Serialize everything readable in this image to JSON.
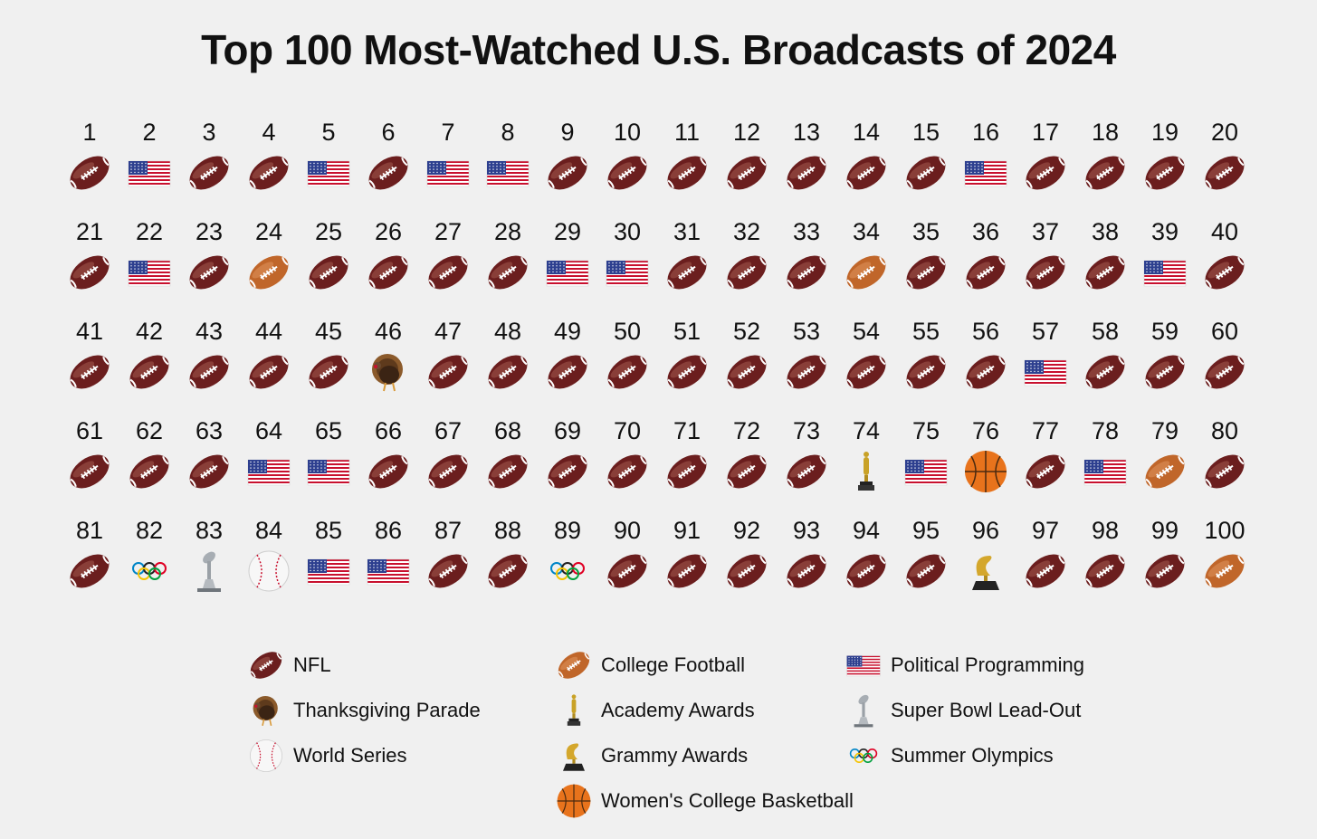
{
  "chart_data": {
    "type": "table",
    "title": "Top 100 Most-Watched U.S. Broadcasts of 2024",
    "ranks": [
      1,
      2,
      3,
      4,
      5,
      6,
      7,
      8,
      9,
      10,
      11,
      12,
      13,
      14,
      15,
      16,
      17,
      18,
      19,
      20,
      21,
      22,
      23,
      24,
      25,
      26,
      27,
      28,
      29,
      30,
      31,
      32,
      33,
      34,
      35,
      36,
      37,
      38,
      39,
      40,
      41,
      42,
      43,
      44,
      45,
      46,
      47,
      48,
      49,
      50,
      51,
      52,
      53,
      54,
      55,
      56,
      57,
      58,
      59,
      60,
      61,
      62,
      63,
      64,
      65,
      66,
      67,
      68,
      69,
      70,
      71,
      72,
      73,
      74,
      75,
      76,
      77,
      78,
      79,
      80,
      81,
      82,
      83,
      84,
      85,
      86,
      87,
      88,
      89,
      90,
      91,
      92,
      93,
      94,
      95,
      96,
      97,
      98,
      99,
      100
    ],
    "categories": [
      "nfl",
      "political",
      "nfl",
      "nfl",
      "political",
      "nfl",
      "political",
      "political",
      "nfl",
      "nfl",
      "nfl",
      "nfl",
      "nfl",
      "nfl",
      "nfl",
      "political",
      "nfl",
      "nfl",
      "nfl",
      "nfl",
      "nfl",
      "political",
      "nfl",
      "college",
      "nfl",
      "nfl",
      "nfl",
      "nfl",
      "political",
      "political",
      "nfl",
      "nfl",
      "nfl",
      "college",
      "nfl",
      "nfl",
      "nfl",
      "nfl",
      "political",
      "nfl",
      "nfl",
      "nfl",
      "nfl",
      "nfl",
      "nfl",
      "parade",
      "nfl",
      "nfl",
      "nfl",
      "nfl",
      "nfl",
      "nfl",
      "nfl",
      "nfl",
      "nfl",
      "nfl",
      "political",
      "nfl",
      "nfl",
      "nfl",
      "nfl",
      "nfl",
      "nfl",
      "political",
      "political",
      "nfl",
      "nfl",
      "nfl",
      "nfl",
      "nfl",
      "nfl",
      "nfl",
      "nfl",
      "oscars",
      "political",
      "basketball",
      "nfl",
      "political",
      "college",
      "nfl",
      "nfl",
      "olympics",
      "leadout",
      "worldseries",
      "political",
      "political",
      "nfl",
      "nfl",
      "olympics",
      "nfl",
      "nfl",
      "nfl",
      "nfl",
      "nfl",
      "nfl",
      "grammys",
      "nfl",
      "nfl",
      "nfl",
      "college"
    ],
    "legend": [
      {
        "key": "nfl",
        "label": "NFL"
      },
      {
        "key": "parade",
        "label": "Thanksgiving Parade"
      },
      {
        "key": "worldseries",
        "label": "World Series"
      },
      {
        "key": "college",
        "label": "College Football"
      },
      {
        "key": "oscars",
        "label": "Academy Awards"
      },
      {
        "key": "grammys",
        "label": "Grammy Awards"
      },
      {
        "key": "basketball",
        "label": "Women's College Basketball"
      },
      {
        "key": "political",
        "label": "Political Programming"
      },
      {
        "key": "leadout",
        "label": "Super Bowl Lead-Out"
      },
      {
        "key": "olympics",
        "label": "Summer Olympics"
      }
    ]
  },
  "colors": {
    "background": "#f0f0f0",
    "nfl": "#6b1e1e",
    "college": "#c0662a",
    "flag_red": "#c8102e",
    "flag_blue": "#2d3f8f",
    "gold": "#c9a227",
    "silver": "#9aa0a6",
    "basketball": "#e8731c"
  }
}
